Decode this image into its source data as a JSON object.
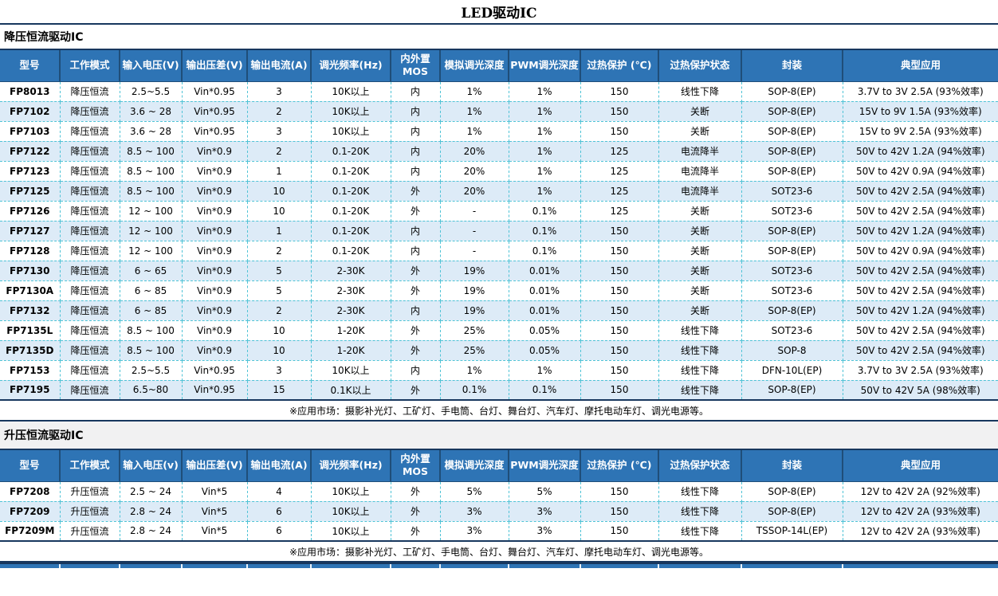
{
  "title": "LED驱动IC",
  "colors": {
    "header_bg": "#2E74B5",
    "header_text": "#FFFFFF",
    "header_separator": "#1F4E79",
    "heavy_border": "#17375E",
    "grid_dashed": "#4FC3D6",
    "alt_row_bg": "#DDEBF7",
    "gap_bg": "#F1F1F2"
  },
  "sections": [
    {
      "label": "降压恒流驱动IC",
      "note": "※应用市场：摄影补光灯、工矿灯、手电筒、台灯、舞台灯、汽车灯、摩托电动车灯、调光电源等。",
      "columns": [
        "型号",
        "工作模式",
        "输入电压(V)",
        "输出压差(V)",
        "输出电流(A)",
        "调光频率(Hz)",
        "内外置\nMOS",
        "模拟调光深度",
        "PWM调光深度",
        "过热保护 (℃)",
        "过热保护状态",
        "封装",
        "典型应用"
      ],
      "rows": [
        [
          "FP8013",
          "降压恒流",
          "2.5~5.5",
          "Vin*0.95",
          "3",
          "10K以上",
          "内",
          "1%",
          "1%",
          "150",
          "线性下降",
          "SOP-8(EP)",
          "3.7V to 3V 2.5A (93%效率)"
        ],
        [
          "FP7102",
          "降压恒流",
          "3.6 ~ 28",
          "Vin*0.95",
          "2",
          "10K以上",
          "内",
          "1%",
          "1%",
          "150",
          "关断",
          "SOP-8(EP)",
          "15V to 9V 1.5A (93%效率)"
        ],
        [
          "FP7103",
          "降压恒流",
          "3.6 ~ 28",
          "Vin*0.95",
          "3",
          "10K以上",
          "内",
          "1%",
          "1%",
          "150",
          "关断",
          "SOP-8(EP)",
          "15V to 9V 2.5A (93%效率)"
        ],
        [
          "FP7122",
          "降压恒流",
          "8.5 ~ 100",
          "Vin*0.9",
          "2",
          "0.1-20K",
          "内",
          "20%",
          "1%",
          "125",
          "电流降半",
          "SOP-8(EP)",
          "50V to 42V 1.2A (94%效率)"
        ],
        [
          "FP7123",
          "降压恒流",
          "8.5 ~ 100",
          "Vin*0.9",
          "1",
          "0.1-20K",
          "内",
          "20%",
          "1%",
          "125",
          "电流降半",
          "SOP-8(EP)",
          "50V to 42V 0.9A (94%效率)"
        ],
        [
          "FP7125",
          "降压恒流",
          "8.5 ~ 100",
          "Vin*0.9",
          "10",
          "0.1-20K",
          "外",
          "20%",
          "1%",
          "125",
          "电流降半",
          "SOT23-6",
          "50V to 42V 2.5A (94%效率)"
        ],
        [
          "FP7126",
          "降压恒流",
          "12 ~ 100",
          "Vin*0.9",
          "10",
          "0.1-20K",
          "外",
          "-",
          "0.1%",
          "125",
          "关断",
          "SOT23-6",
          "50V to 42V 2.5A (94%效率)"
        ],
        [
          "FP7127",
          "降压恒流",
          "12 ~ 100",
          "Vin*0.9",
          "1",
          "0.1-20K",
          "内",
          "-",
          "0.1%",
          "150",
          "关断",
          "SOP-8(EP)",
          "50V to 42V 1.2A (94%效率)"
        ],
        [
          "FP7128",
          "降压恒流",
          "12 ~ 100",
          "Vin*0.9",
          "2",
          "0.1-20K",
          "内",
          "-",
          "0.1%",
          "150",
          "关断",
          "SOP-8(EP)",
          "50V to 42V 0.9A (94%效率)"
        ],
        [
          "FP7130",
          "降压恒流",
          "6 ~ 65",
          "Vin*0.9",
          "5",
          "2-30K",
          "外",
          "19%",
          "0.01%",
          "150",
          "关断",
          "SOT23-6",
          "50V to 42V 2.5A (94%效率)"
        ],
        [
          "FP7130A",
          "降压恒流",
          "6 ~ 85",
          "Vin*0.9",
          "5",
          "2-30K",
          "外",
          "19%",
          "0.01%",
          "150",
          "关断",
          "SOT23-6",
          "50V to 42V 2.5A (94%效率)"
        ],
        [
          "FP7132",
          "降压恒流",
          "6 ~ 85",
          "Vin*0.9",
          "2",
          "2-30K",
          "内",
          "19%",
          "0.01%",
          "150",
          "关断",
          "SOP-8(EP)",
          "50V to 42V 1.2A (94%效率)"
        ],
        [
          "FP7135L",
          "降压恒流",
          "8.5 ~ 100",
          "Vin*0.9",
          "10",
          "1-20K",
          "外",
          "25%",
          "0.05%",
          "150",
          "线性下降",
          "SOT23-6",
          "50V to 42V 2.5A (94%效率)"
        ],
        [
          "FP7135D",
          "降压恒流",
          "8.5 ~ 100",
          "Vin*0.9",
          "10",
          "1-20K",
          "外",
          "25%",
          "0.05%",
          "150",
          "线性下降",
          "SOP-8",
          "50V to 42V 2.5A (94%效率)"
        ],
        [
          "FP7153",
          "降压恒流",
          "2.5~5.5",
          "Vin*0.95",
          "3",
          "10K以上",
          "内",
          "1%",
          "1%",
          "150",
          "线性下降",
          "DFN-10L(EP)",
          "3.7V to 3V 2.5A (93%效率)"
        ],
        [
          "FP7195",
          "降压恒流",
          "6.5~80",
          "Vin*0.95",
          "15",
          "0.1K以上",
          "外",
          "0.1%",
          "0.1%",
          "150",
          "线性下降",
          "SOP-8(EP)",
          "50V to 42V 5A (98%效率)"
        ]
      ]
    },
    {
      "label": "升压恒流驱动IC",
      "note": "※应用市场：摄影补光灯、工矿灯、手电筒、台灯、舞台灯、汽车灯、摩托电动车灯、调光电源等。",
      "columns": [
        "型号",
        "工作模式",
        "输入电压(v)",
        "输出压差(V)",
        "输出电流(A)",
        "调光频率(Hz)",
        "内外置\nMOS",
        "模拟调光深度",
        "PWM调光深度",
        "过热保护 (℃)",
        "过热保护状态",
        "封装",
        "典型应用"
      ],
      "rows": [
        [
          "FP7208",
          "升压恒流",
          "2.5 ~ 24",
          "Vin*5",
          "4",
          "10K以上",
          "外",
          "5%",
          "5%",
          "150",
          "线性下降",
          "SOP-8(EP)",
          "12V to 42V 2A  (92%效率)"
        ],
        [
          "FP7209",
          "升压恒流",
          "2.8 ~ 24",
          "Vin*5",
          "6",
          "10K以上",
          "外",
          "3%",
          "3%",
          "150",
          "线性下降",
          "SOP-8(EP)",
          "12V to 42V 2A  (93%效率)"
        ],
        [
          "FP7209M",
          "升压恒流",
          "2.8 ~ 24",
          "Vin*5",
          "6",
          "10K以上",
          "外",
          "3%",
          "3%",
          "150",
          "线性下降",
          "TSSOP-14L(EP)",
          "12V to 42V 2A  (93%效率)"
        ]
      ]
    }
  ]
}
